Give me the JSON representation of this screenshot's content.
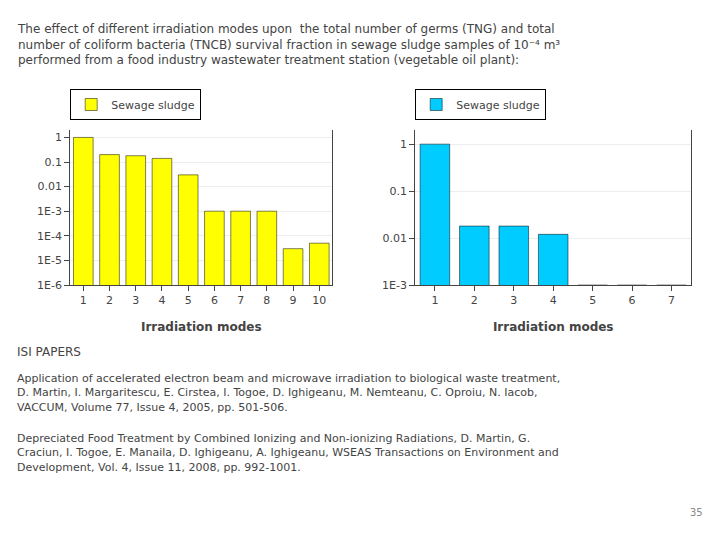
{
  "title": "The effect of different irradiation modes upon  the total number of germs (TNG) and total number of coliform bacteria (TNCB) survival fraction in sewage sludge samples of 10⁻⁴ m³ performed from a food industry wastewater treatment station (vegetable oil plant):",
  "annotations": [
    "ISI PAPERS",
    "Application of accelerated electron beam and microwave irradiation to biological waste treatment, D. Martin, I. Margaritescu, E. Cirstea, I. Togoe, D. Ighigeanu, M. Nemteanu, C. Oproiu, N. Iacob, VACCUM, Volume 77, Issue 4, 2005, pp. 501-506.",
    "Depreciated Food Treatment by Combined Ionizing and Non-ionizing Radiations, D. Martin, G. Craciun, I. Togoe, E. Manaila, D. Ighigeanu, A. Ighigeanu, WSEAS Transactions on Environment and Development, Vol. 4, Issue 11, 2008, pp. 992-1001.",
    "35"
  ],
  "chart_data": [
    {
      "type": "bar",
      "xlabel": "Irradiation modes",
      "categories": [
        1,
        2,
        3,
        4,
        5,
        6,
        7,
        8,
        9,
        10
      ],
      "series": [
        {
          "name": "Sewage sludge",
          "color": "#FFFF00",
          "values": [
            1.0,
            0.2,
            0.18,
            0.14,
            0.03,
            0.001,
            0.001,
            0.001,
            3e-05,
            5e-05
          ]
        }
      ],
      "log": "y",
      "ylim": [
        1e-06,
        2
      ],
      "yticks": [
        {
          "value": 1e-06,
          "label": "1E-6"
        },
        {
          "value": 1e-05,
          "label": "1E-5"
        },
        {
          "value": 0.0001,
          "label": "1E-4"
        },
        {
          "value": 0.001,
          "label": "1E-3"
        },
        0.01,
        0.1,
        1
      ],
      "grid": true,
      "legend": "upper left"
    },
    {
      "type": "bar",
      "xlabel": "Irradiation modes",
      "categories": [
        1,
        2,
        3,
        4,
        5,
        6,
        7
      ],
      "series": [
        {
          "name": "Sewage sludge",
          "color": "#00CCFF",
          "values": [
            1.0,
            0.018,
            0.018,
            0.012,
            0.001,
            0.001,
            0.001
          ]
        }
      ],
      "log": "y",
      "ylim": [
        0.001,
        2
      ],
      "yticks": [
        {
          "value": 0.001,
          "label": "1E-3"
        },
        0.01,
        0.1,
        1
      ],
      "grid": true,
      "legend": "upper left"
    }
  ]
}
